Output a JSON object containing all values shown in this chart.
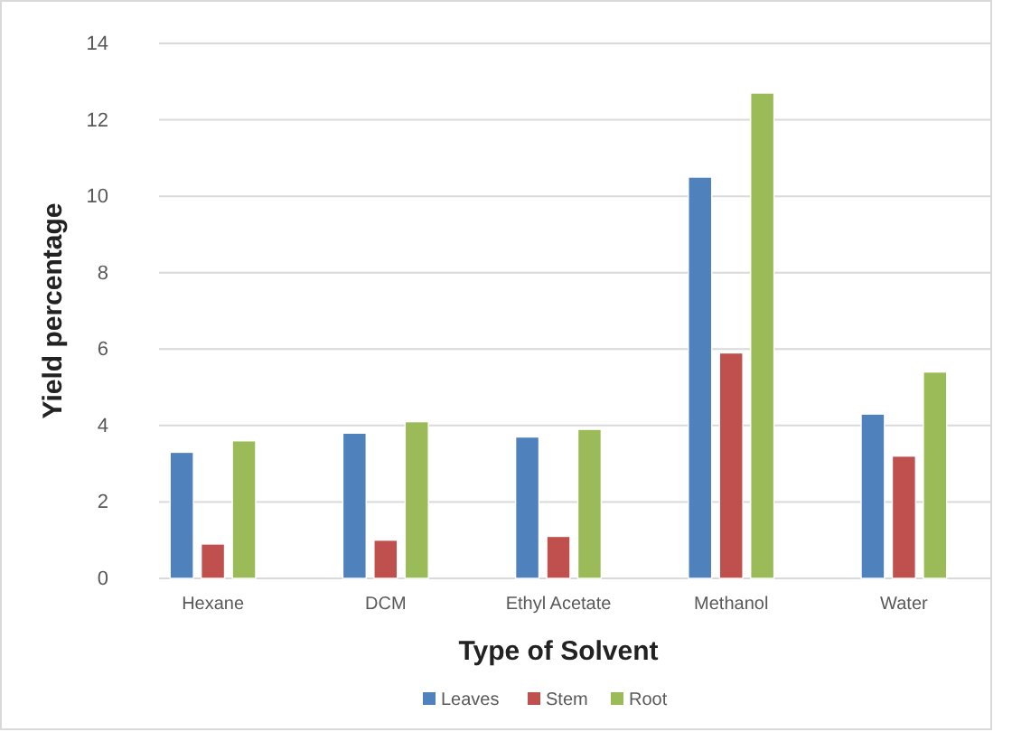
{
  "chart_data": {
    "type": "bar",
    "xlabel": "Type of Solvent",
    "ylabel": "Yield percentage",
    "categories": [
      "Hexane",
      "DCM",
      "Ethyl Acetate",
      "Methanol",
      "Water"
    ],
    "series": [
      {
        "name": "Leaves",
        "color": "#4f81bd",
        "values": [
          3.3,
          3.8,
          3.7,
          10.5,
          4.3
        ]
      },
      {
        "name": "Stem",
        "color": "#c0504d",
        "values": [
          0.9,
          1.0,
          1.1,
          5.9,
          3.2
        ]
      },
      {
        "name": "Root",
        "color": "#9bbb59",
        "values": [
          3.6,
          4.1,
          3.9,
          12.7,
          5.4
        ]
      }
    ],
    "ylim": [
      0,
      14
    ],
    "yticks": [
      0,
      2,
      4,
      6,
      8,
      10,
      12,
      14
    ],
    "grid": "y",
    "legend": "bottom"
  }
}
